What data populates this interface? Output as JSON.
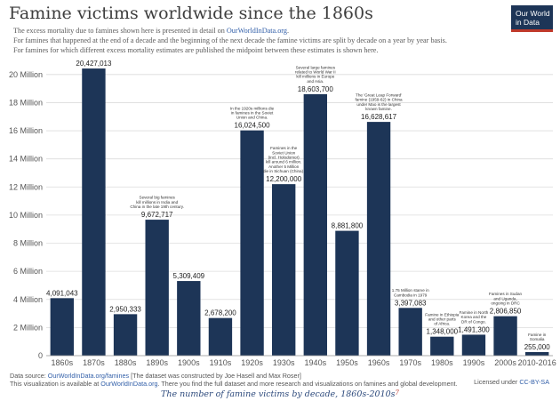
{
  "header": {
    "title": "Famine victims worldwide since the 1860s",
    "sub1_pre": "The excess mortality due to famines shown here is presented in detail on ",
    "sub1_link": "OurWorldInData.org",
    "sub1_post": ".",
    "sub2": "For famines that happened at the end of a decade and the beginning of the next decade the famine victims are split by decade on a year by year basis.",
    "sub3": "For famines for which different excess mortality estimates are published the midpoint between these estimates is shown here.",
    "logo_line1": "Our World",
    "logo_line2": "in Data"
  },
  "footer": {
    "source_pre": "Data source: ",
    "source_link": "OurWorldInData.org/famines",
    "source_post": " [The dataset was constructed by Joe Hasell and Max Roser]",
    "viz_pre": "This visualization is available at ",
    "viz_link": "OurWorldInData.org",
    "viz_post": ". There you find the full dataset and more research and visualizations on famines and global development.",
    "license_pre": "Licensed under ",
    "license_link": "CC-BY-SA",
    "caption": "The number of famine victims by decade, 1860s-2010s",
    "caption_mark": "7"
  },
  "chart_data": {
    "type": "bar",
    "categories": [
      "1860s",
      "1870s",
      "1880s",
      "1890s",
      "1900s",
      "1910s",
      "1920s",
      "1930s",
      "1940s",
      "1950s",
      "1960s",
      "1970s",
      "1980s",
      "1990s",
      "2000s",
      "2010-2016"
    ],
    "values": [
      4091043,
      20427013,
      2950333,
      9672717,
      5309409,
      2678200,
      16024500,
      12200000,
      18603700,
      8881800,
      16628617,
      3397083,
      1348000,
      1491300,
      2806850,
      255000
    ],
    "value_labels": [
      "4,091,043",
      "20,427,013",
      "2,950,333",
      "9,672,717",
      "5,309,409",
      "2,678,200",
      "16,024,500",
      "12,200,000",
      "18,603,700",
      "8,881,800",
      "16,628,617",
      "3,397,083",
      "1,348,000",
      "1,491,300",
      "2,806,850",
      "255,000"
    ],
    "yticks": [
      0,
      2000000,
      4000000,
      6000000,
      8000000,
      10000000,
      12000000,
      14000000,
      16000000,
      18000000,
      20000000
    ],
    "ytick_labels": [
      "0",
      "2 Million",
      "4 Million",
      "6 Million",
      "8 Million",
      "10 Million",
      "12 Million",
      "14 Million",
      "16 Million",
      "18 Million",
      "20 Million"
    ],
    "ylim": [
      0,
      21000000
    ],
    "bar_color": "#1d3557",
    "grid": true,
    "annotations": [
      {
        "index": 3,
        "lines": [
          "Several big famines",
          "kill millions in India and",
          "China in the late 19th century."
        ]
      },
      {
        "index": 6,
        "lines": [
          "In the 1920s millions die",
          "in famines in the Soviet",
          "Union and China."
        ]
      },
      {
        "index": 7,
        "lines": [
          "Famines in the",
          "Soviet Union",
          "(incl. Holodomor)",
          "kill around 6 million.",
          "Another 5 Million",
          "die in Sichuan (China)."
        ]
      },
      {
        "index": 8,
        "lines": [
          "Several large famines",
          "related to World War II",
          "kill millions in Europe",
          "and Asia."
        ]
      },
      {
        "index": 10,
        "lines": [
          "The 'Great Leap Forward'",
          "famine (1959-62) in China",
          "under Mao is the largest",
          "known famine."
        ]
      },
      {
        "index": 11,
        "lines": [
          "1.75 Million starve in",
          "Cambodia in 1979"
        ]
      },
      {
        "index": 12,
        "lines": [
          "Famine in Ethiopia",
          "and other parts",
          "of Africa."
        ]
      },
      {
        "index": 13,
        "lines": [
          "Famine in North",
          "Korea and the",
          "DR of Congo."
        ]
      },
      {
        "index": 14,
        "lines": [
          "Famines in Sudan",
          "and Uganda,",
          "ongoing in DRC"
        ]
      },
      {
        "index": 15,
        "lines": [
          "Famine in",
          "Somalia"
        ]
      }
    ]
  }
}
